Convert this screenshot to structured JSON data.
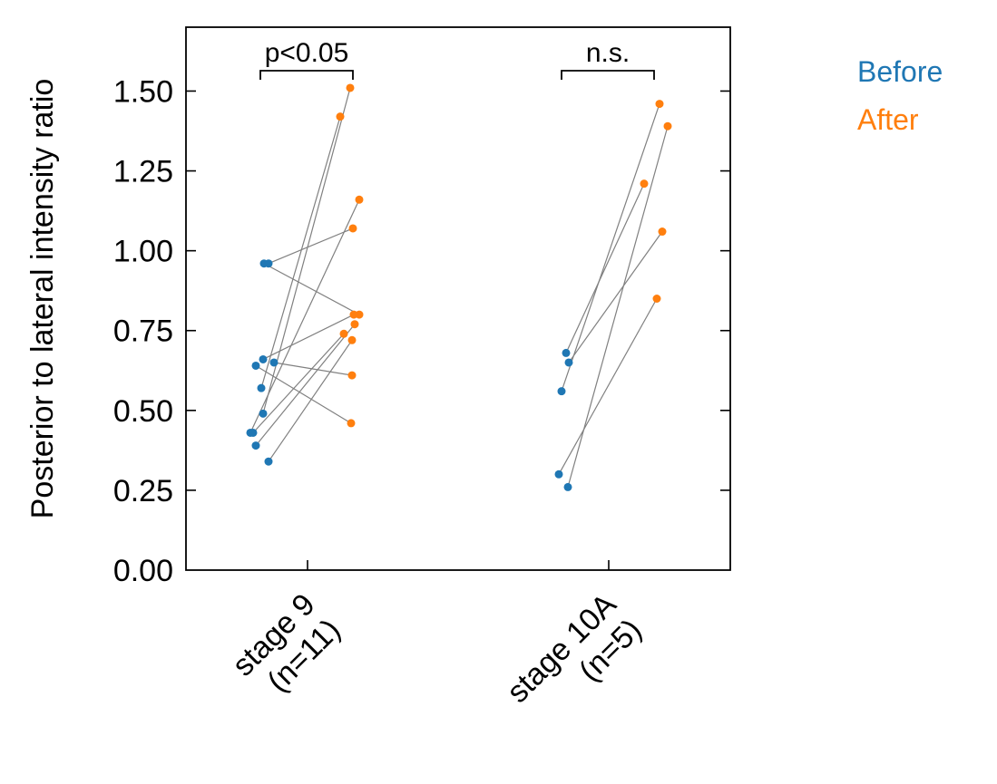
{
  "chart_data": {
    "type": "scatter",
    "subtype": "paired-dot-plot",
    "ylabel": "Posterior to lateral intensity ratio",
    "ylim": [
      0,
      1.7
    ],
    "yticks": [
      "0.00",
      "0.25",
      "0.50",
      "0.75",
      "1.00",
      "1.25",
      "1.50"
    ],
    "categories": [
      {
        "line1": "stage 9",
        "line2": "(n=11)"
      },
      {
        "line1": "stage 10A",
        "line2": "(n=5)"
      }
    ],
    "series": [
      {
        "name": "Before",
        "color": "#1f77b4"
      },
      {
        "name": "After",
        "color": "#ff7f0e"
      }
    ],
    "pairs": [
      [
        {
          "before": 0.96,
          "after": 0.8
        },
        {
          "before": 0.96,
          "after": 1.07
        },
        {
          "before": 0.66,
          "after": 0.8
        },
        {
          "before": 0.65,
          "after": 0.61
        },
        {
          "before": 0.64,
          "after": 0.46
        },
        {
          "before": 0.57,
          "after": 1.42
        },
        {
          "before": 0.49,
          "after": 1.51
        },
        {
          "before": 0.43,
          "after": 1.16
        },
        {
          "before": 0.43,
          "after": 0.74
        },
        {
          "before": 0.39,
          "after": 0.77
        },
        {
          "before": 0.34,
          "after": 0.72
        }
      ],
      [
        {
          "before": 0.68,
          "after": 1.21
        },
        {
          "before": 0.65,
          "after": 1.06
        },
        {
          "before": 0.56,
          "after": 1.46
        },
        {
          "before": 0.3,
          "after": 0.85
        },
        {
          "before": 0.26,
          "after": 1.39
        }
      ]
    ],
    "significance": [
      "p<0.05",
      "n.s."
    ],
    "legend_position": "top-right",
    "grid": false
  }
}
